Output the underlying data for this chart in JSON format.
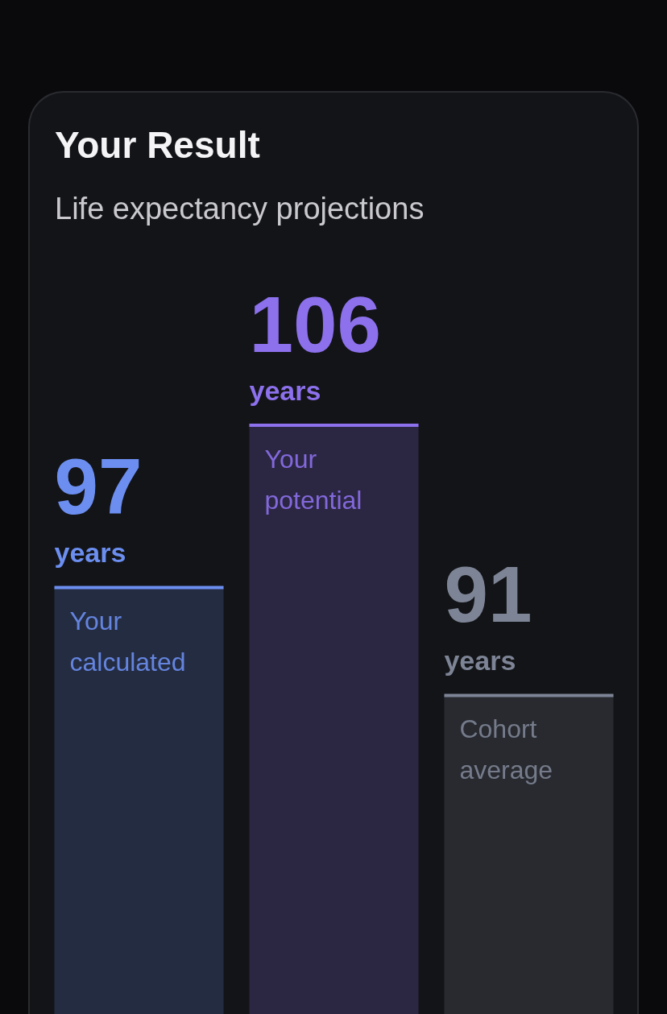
{
  "chart_data": {
    "type": "bar",
    "title": "Your Result",
    "subtitle": "Life expectancy projections",
    "categories": [
      "Your calculated",
      "Your potential",
      "Cohort average"
    ],
    "values": [
      97,
      106,
      91
    ],
    "colors": [
      "#6b8ef0",
      "#8c70ec",
      "#7d8495"
    ],
    "data_labels": true,
    "annotations": [
      {
        "text": "years",
        "x": "Your calculated",
        "y": 97
      },
      {
        "text": "years",
        "x": "Your potential",
        "y": 106
      },
      {
        "text": "years",
        "x": "Cohort average",
        "y": 91
      }
    ],
    "ylim": [
      73.3,
      116.4
    ],
    "tick_labels": false
  }
}
